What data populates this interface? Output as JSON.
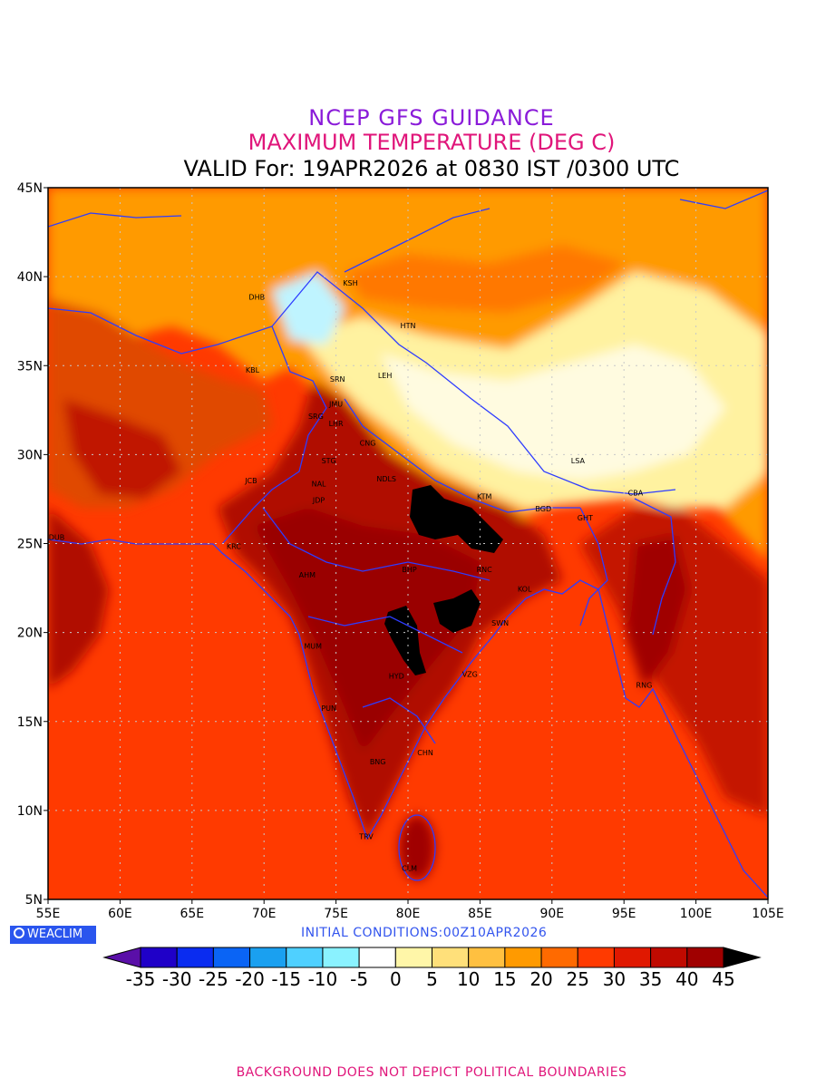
{
  "header": {
    "title_line1": "NCEP GFS GUIDANCE",
    "title_line2": "MAXIMUM TEMPERATURE (DEG C)",
    "title_line3": "VALID For: 19APR2026 at 0830 IST /0300 UTC"
  },
  "colors": {
    "title1": "#8a1bd9",
    "title2": "#e0157a",
    "footer": "#e0157a",
    "boundary": "#2e3cff",
    "gridline": "#c8c8c8"
  },
  "map": {
    "lon_range": [
      55,
      105
    ],
    "lat_range": [
      5,
      45
    ],
    "x_ticks": [
      "55E",
      "60E",
      "65E",
      "70E",
      "75E",
      "80E",
      "85E",
      "90E",
      "95E",
      "100E",
      "105E"
    ],
    "y_ticks": [
      "5N",
      "10N",
      "15N",
      "20N",
      "25N",
      "30N",
      "35N",
      "40N",
      "45N"
    ],
    "cities": [
      {
        "code": "DHB",
        "lon": 69.5,
        "lat": 38.7
      },
      {
        "code": "KSH",
        "lon": 76.0,
        "lat": 39.5
      },
      {
        "code": "HTN",
        "lon": 80.0,
        "lat": 37.1
      },
      {
        "code": "KBL",
        "lon": 69.2,
        "lat": 34.6
      },
      {
        "code": "SRN",
        "lon": 75.1,
        "lat": 34.1
      },
      {
        "code": "LEH",
        "lon": 78.4,
        "lat": 34.3
      },
      {
        "code": "JMU",
        "lon": 75.0,
        "lat": 32.7
      },
      {
        "code": "SRG",
        "lon": 73.6,
        "lat": 32.0
      },
      {
        "code": "LHR",
        "lon": 75.0,
        "lat": 31.6
      },
      {
        "code": "CNG",
        "lon": 77.2,
        "lat": 30.5
      },
      {
        "code": "STG",
        "lon": 74.5,
        "lat": 29.5
      },
      {
        "code": "NDLS",
        "lon": 78.5,
        "lat": 28.5
      },
      {
        "code": "JCB",
        "lon": 69.1,
        "lat": 28.4
      },
      {
        "code": "NAL",
        "lon": 73.8,
        "lat": 28.2
      },
      {
        "code": "JDP",
        "lon": 73.8,
        "lat": 27.3
      },
      {
        "code": "LSA",
        "lon": 91.8,
        "lat": 29.5
      },
      {
        "code": "KTM",
        "lon": 85.3,
        "lat": 27.5
      },
      {
        "code": "CBA",
        "lon": 95.8,
        "lat": 27.7
      },
      {
        "code": "BGD",
        "lon": 89.4,
        "lat": 26.8
      },
      {
        "code": "GHT",
        "lon": 92.3,
        "lat": 26.3
      },
      {
        "code": "DUB",
        "lon": 55.6,
        "lat": 25.2
      },
      {
        "code": "KRC",
        "lon": 67.9,
        "lat": 24.7
      },
      {
        "code": "AHM",
        "lon": 73.0,
        "lat": 23.1
      },
      {
        "code": "BHP",
        "lon": 80.1,
        "lat": 23.4
      },
      {
        "code": "RNC",
        "lon": 85.3,
        "lat": 23.4
      },
      {
        "code": "KOL",
        "lon": 88.1,
        "lat": 22.3
      },
      {
        "code": "SWN",
        "lon": 86.4,
        "lat": 20.4
      },
      {
        "code": "MUM",
        "lon": 73.4,
        "lat": 19.1
      },
      {
        "code": "HYD",
        "lon": 79.2,
        "lat": 17.4
      },
      {
        "code": "VZG",
        "lon": 84.3,
        "lat": 17.5
      },
      {
        "code": "RNG",
        "lon": 96.4,
        "lat": 16.9
      },
      {
        "code": "PUN",
        "lon": 74.5,
        "lat": 15.6
      },
      {
        "code": "CHN",
        "lon": 81.2,
        "lat": 13.1
      },
      {
        "code": "BNG",
        "lon": 77.9,
        "lat": 12.6
      },
      {
        "code": "TRV",
        "lon": 77.1,
        "lat": 8.4
      },
      {
        "code": "CLM",
        "lon": 80.1,
        "lat": 6.6
      }
    ]
  },
  "brand": {
    "label": "WEACLIM"
  },
  "initial_conditions": "INITIAL CONDITIONS:00Z10APR2026",
  "legend": {
    "labels": [
      "-35",
      "-30",
      "-25",
      "-20",
      "-15",
      "-10",
      "-5",
      "0",
      "5",
      "10",
      "15",
      "20",
      "25",
      "30",
      "35",
      "40",
      "45"
    ],
    "colors": [
      "#5a0fa8",
      "#1f00c8",
      "#0a2cf0",
      "#0a64f5",
      "#1aa0f0",
      "#4fd0ff",
      "#8af2ff",
      "#ffffff",
      "#fff6a8",
      "#ffe07a",
      "#ffc040",
      "#ff9a00",
      "#ff6a00",
      "#ff3a00",
      "#e01800",
      "#c00a00",
      "#a00000",
      "#000000"
    ]
  },
  "footer": "BACKGROUND DOES NOT DEPICT POLITICAL BOUNDARIES"
}
